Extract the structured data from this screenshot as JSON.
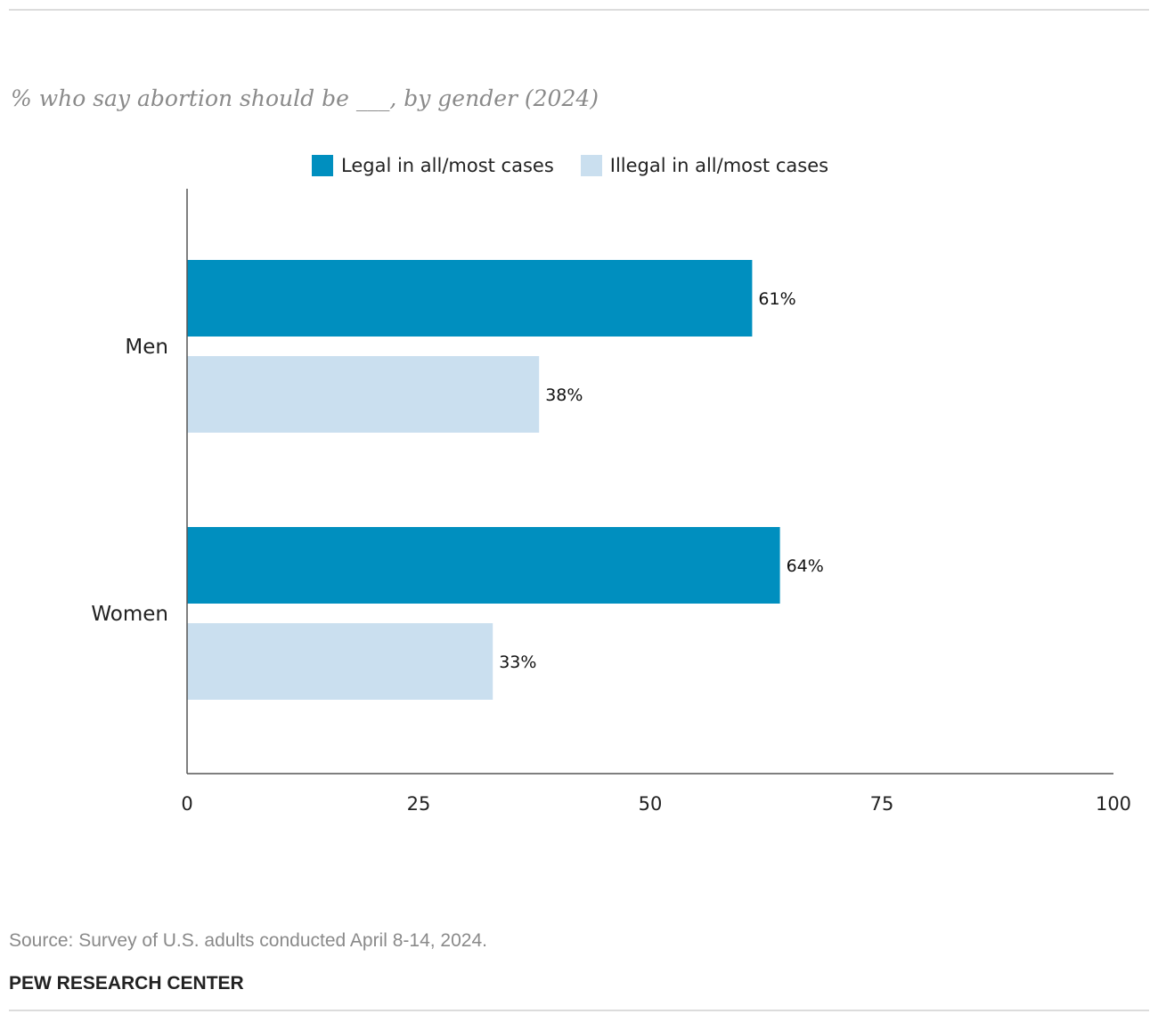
{
  "chart_data": {
    "type": "bar",
    "orientation": "horizontal",
    "subtitle": "% who say abortion should be ___, by gender (2024)",
    "categories": [
      "Men",
      "Women"
    ],
    "series": [
      {
        "name": "Legal in all/most cases",
        "values": [
          61,
          64
        ],
        "labels": [
          "61%",
          "64%"
        ],
        "color": "#008fbf"
      },
      {
        "name": "Illegal in all/most cases",
        "values": [
          38,
          33
        ],
        "labels": [
          "38%",
          "33%"
        ],
        "color": "#cadfef"
      }
    ],
    "xlim": [
      0,
      100
    ],
    "xticks": [
      0,
      25,
      50,
      75,
      100
    ],
    "grid": false,
    "legend_position": "top"
  },
  "footer": {
    "source": "Source: Survey of U.S. adults conducted April 8-14, 2024.",
    "brand": "PEW RESEARCH CENTER"
  }
}
